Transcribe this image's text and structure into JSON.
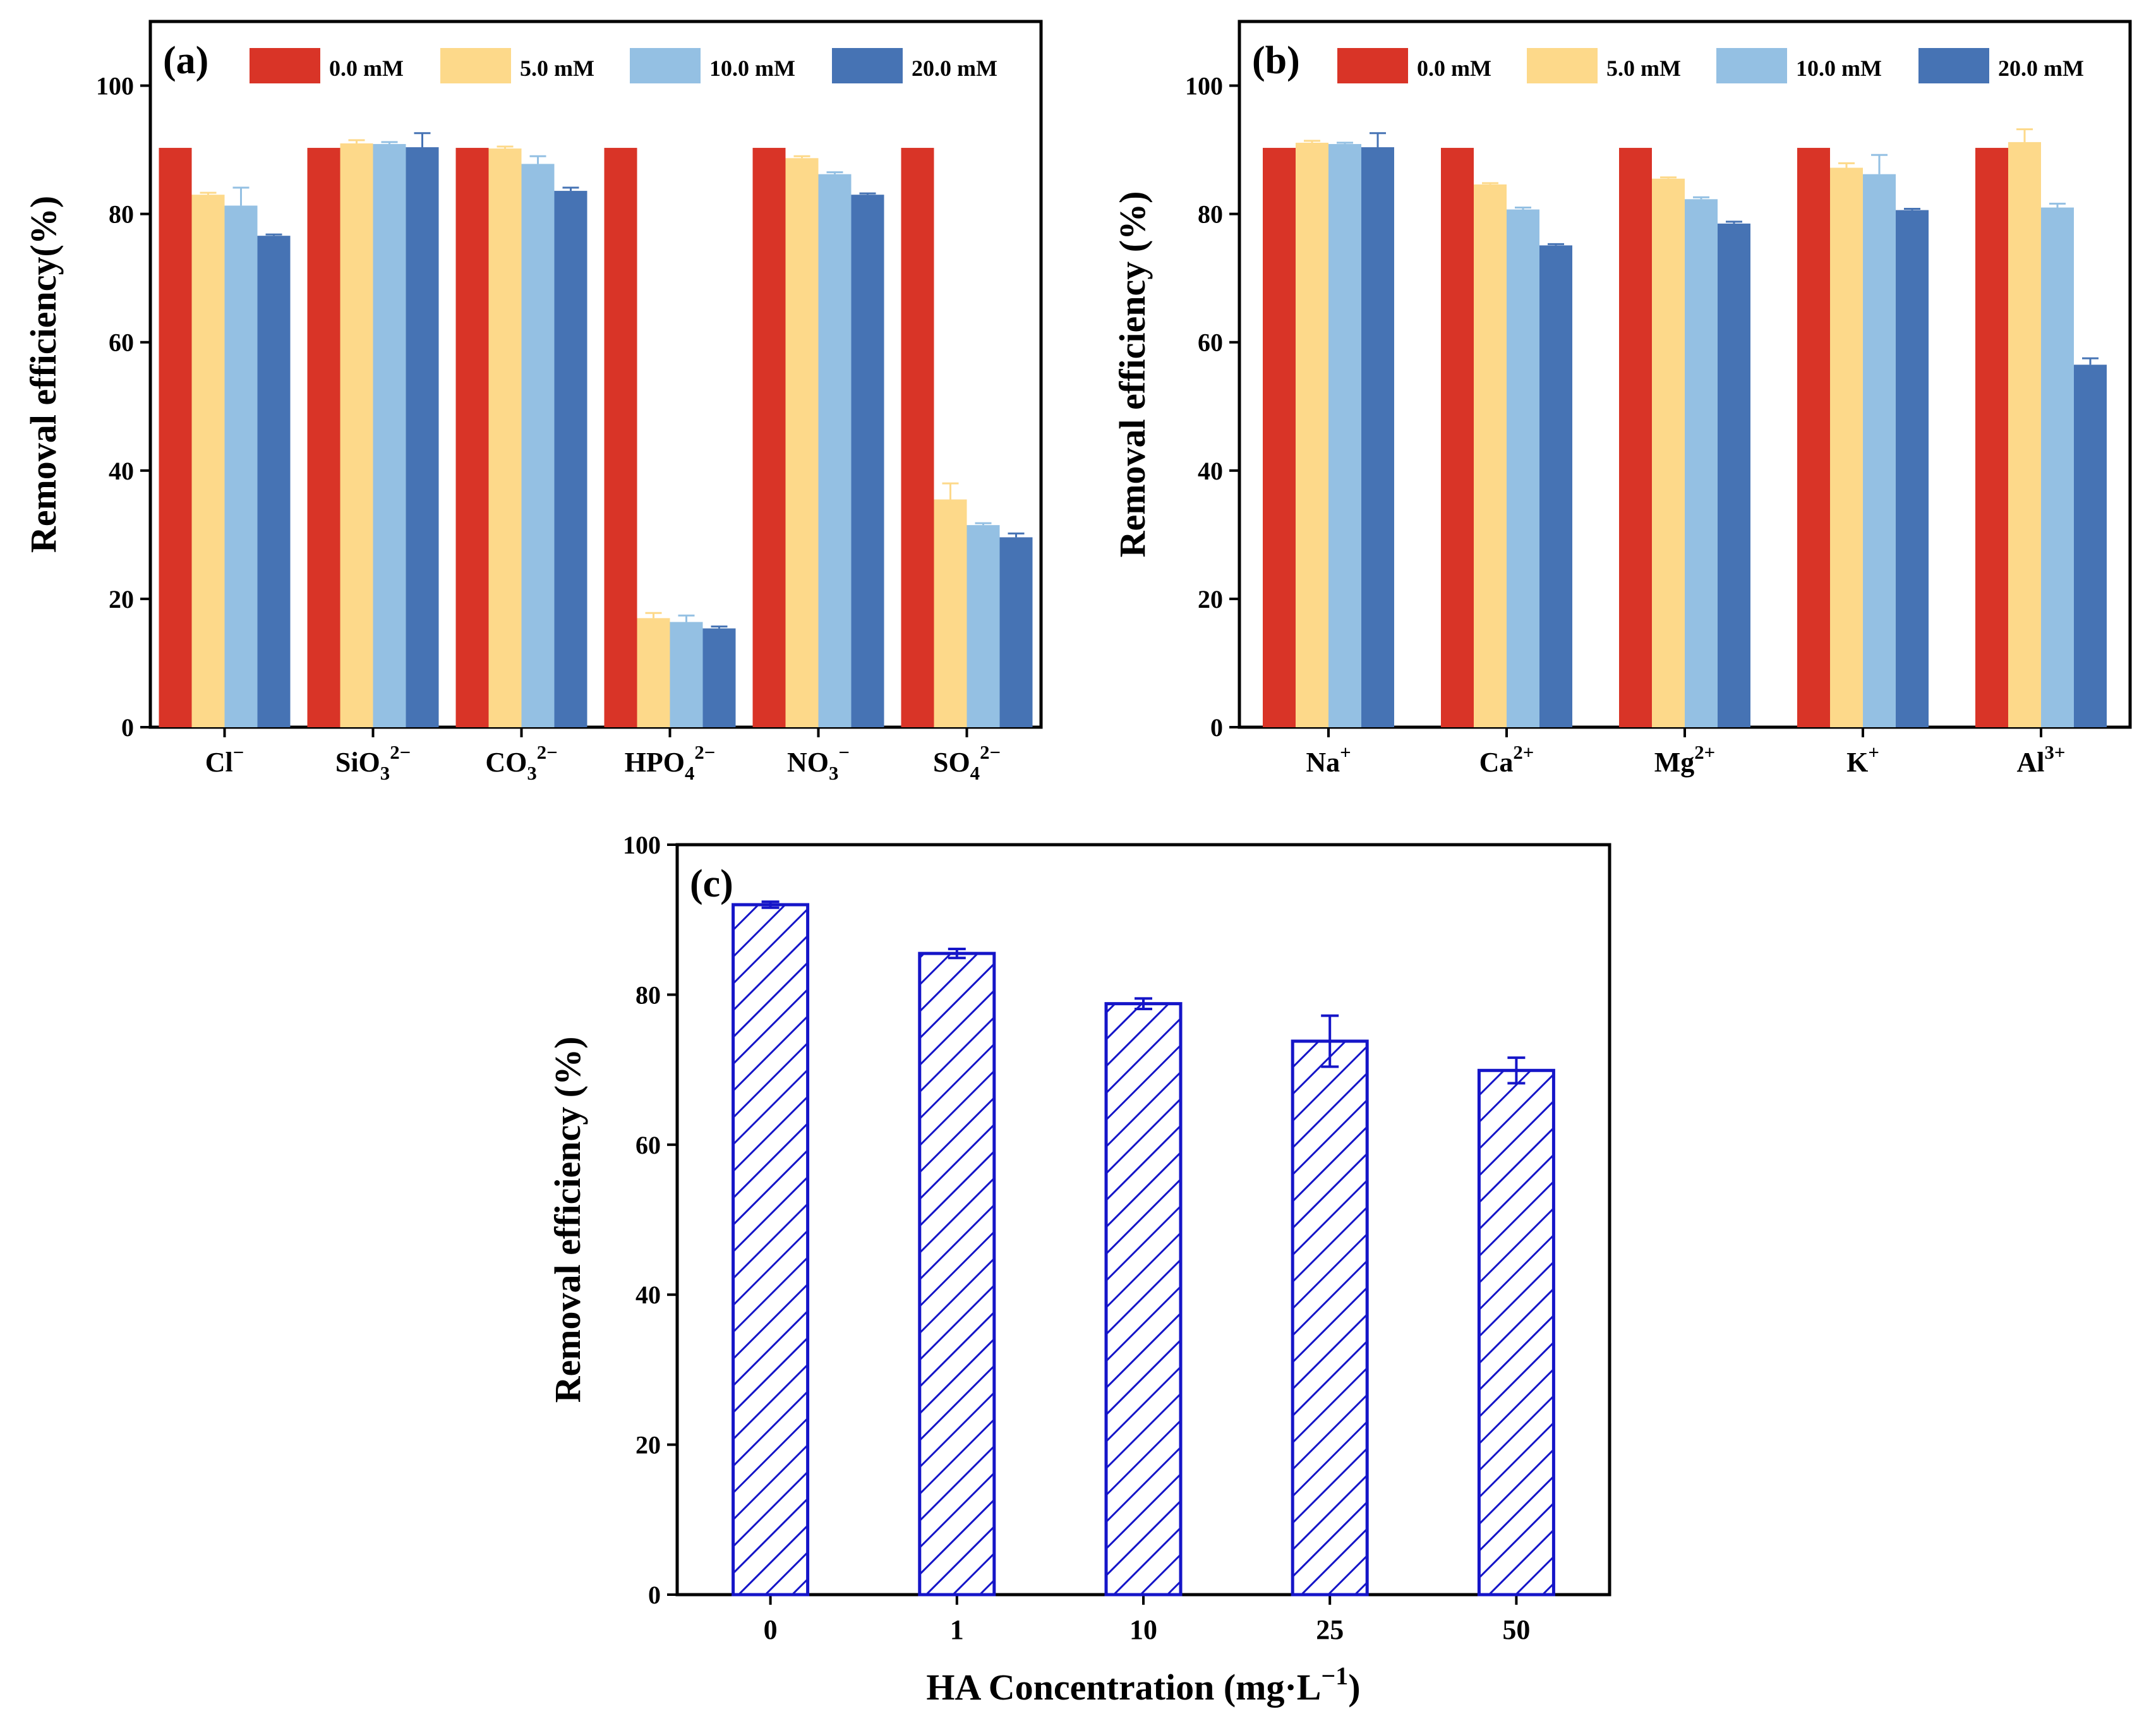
{
  "chart_data": [
    {
      "type": "bar",
      "panel_label": "(a)",
      "ylabel": "Removal efficiency(%)",
      "xlabel": "",
      "ylim": [
        0,
        110
      ],
      "yticks": [
        0,
        20,
        40,
        60,
        80,
        100
      ],
      "categories": [
        {
          "base": "Cl",
          "sub": "",
          "sup": "−"
        },
        {
          "base": "SiO",
          "sub": "3",
          "sup": "2−"
        },
        {
          "base": "CO",
          "sub": "3",
          "sup": "2−"
        },
        {
          "base": "HPO",
          "sub": "4",
          "sup": "2−"
        },
        {
          "base": "NO",
          "sub": "3",
          "sup": "−"
        },
        {
          "base": "SO",
          "sub": "4",
          "sup": "2−"
        }
      ],
      "series": [
        {
          "name": "0.0 mM",
          "color": "#d93427",
          "values": [
            90.3,
            90.3,
            90.3,
            90.3,
            90.3,
            90.3
          ],
          "errors": [
            0,
            0,
            0,
            0,
            0,
            0
          ]
        },
        {
          "name": "5.0 mM",
          "color": "#fdd98a",
          "values": [
            83.0,
            91.0,
            90.2,
            17.0,
            88.7,
            35.5
          ],
          "errors": [
            0.3,
            0.5,
            0.3,
            0.8,
            0.3,
            2.5
          ]
        },
        {
          "name": "10.0 mM",
          "color": "#94c0e3",
          "values": [
            81.3,
            90.9,
            87.8,
            16.4,
            86.2,
            31.5
          ],
          "errors": [
            2.8,
            0.3,
            1.2,
            1.0,
            0.3,
            0.3
          ]
        },
        {
          "name": "20.0 mM",
          "color": "#4673b4",
          "values": [
            76.6,
            90.4,
            83.6,
            15.4,
            83.0,
            29.6
          ],
          "errors": [
            0.2,
            2.2,
            0.5,
            0.3,
            0.2,
            0.6
          ]
        }
      ]
    },
    {
      "type": "bar",
      "panel_label": "(b)",
      "ylabel": "Removal efficiency (%)",
      "xlabel": "",
      "ylim": [
        0,
        110
      ],
      "yticks": [
        0,
        20,
        40,
        60,
        80,
        100
      ],
      "categories": [
        {
          "base": "Na",
          "sub": "",
          "sup": "+"
        },
        {
          "base": "Ca",
          "sub": "",
          "sup": "2+"
        },
        {
          "base": "Mg",
          "sub": "",
          "sup": "2+"
        },
        {
          "base": "K",
          "sub": "",
          "sup": "+"
        },
        {
          "base": "Al",
          "sub": "",
          "sup": "3+"
        }
      ],
      "series": [
        {
          "name": "0.0 mM",
          "color": "#d93427",
          "values": [
            90.3,
            90.3,
            90.3,
            90.3,
            90.3
          ],
          "errors": [
            0,
            0,
            0,
            0,
            0
          ]
        },
        {
          "name": "5.0 mM",
          "color": "#fdd98a",
          "values": [
            91.1,
            84.6,
            85.5,
            87.2,
            91.2
          ],
          "errors": [
            0.3,
            0.2,
            0.2,
            0.7,
            2.0
          ]
        },
        {
          "name": "10.0 mM",
          "color": "#94c0e3",
          "values": [
            90.9,
            80.7,
            82.3,
            86.2,
            81.0
          ],
          "errors": [
            0.2,
            0.3,
            0.3,
            3.0,
            0.6
          ]
        },
        {
          "name": "20.0 mM",
          "color": "#4673b4",
          "values": [
            90.4,
            75.1,
            78.5,
            80.6,
            56.5
          ],
          "errors": [
            2.2,
            0.2,
            0.3,
            0.2,
            1.0
          ]
        }
      ]
    },
    {
      "type": "bar",
      "panel_label": "(c)",
      "ylabel": "Removal efficiency (%)",
      "xlabel": "HA Concentration (mg·L",
      "xlabel_sup": "−1",
      "xlabel_end": ")",
      "ylim": [
        0,
        100
      ],
      "yticks": [
        0,
        20,
        40,
        60,
        80,
        100
      ],
      "categories": [
        "0",
        "1",
        "10",
        "25",
        "50"
      ],
      "values": [
        92.0,
        85.5,
        78.8,
        73.8,
        69.9
      ],
      "errors": [
        0.4,
        0.6,
        0.7,
        3.4,
        1.7
      ],
      "color": "#1515c8",
      "fill_pattern": "diagonal-hatch"
    }
  ]
}
